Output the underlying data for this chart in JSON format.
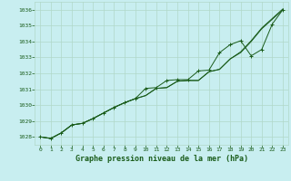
{
  "title": "Graphe pression niveau de la mer (hPa)",
  "bg_color": "#c8eef0",
  "grid_color": "#b0d8c8",
  "line_color": "#1a5c1a",
  "xlim": [
    -0.5,
    23.5
  ],
  "ylim": [
    1027.5,
    1036.5
  ],
  "yticks": [
    1028,
    1029,
    1030,
    1031,
    1032,
    1033,
    1034,
    1035,
    1036
  ],
  "xticks": [
    0,
    1,
    2,
    3,
    4,
    5,
    6,
    7,
    8,
    9,
    10,
    11,
    12,
    13,
    14,
    15,
    16,
    17,
    18,
    19,
    20,
    21,
    22,
    23
  ],
  "series1": [
    [
      0,
      1028.0
    ],
    [
      1,
      1027.9
    ],
    [
      2,
      1028.25
    ],
    [
      3,
      1028.75
    ],
    [
      4,
      1028.85
    ],
    [
      5,
      1029.15
    ],
    [
      6,
      1029.5
    ],
    [
      7,
      1029.85
    ],
    [
      8,
      1030.15
    ],
    [
      9,
      1030.4
    ],
    [
      10,
      1030.6
    ],
    [
      11,
      1031.05
    ],
    [
      12,
      1031.1
    ],
    [
      13,
      1031.5
    ],
    [
      14,
      1031.55
    ],
    [
      15,
      1031.55
    ],
    [
      16,
      1032.1
    ],
    [
      17,
      1032.25
    ],
    [
      18,
      1032.9
    ],
    [
      19,
      1033.3
    ],
    [
      20,
      1034.0
    ],
    [
      21,
      1034.8
    ],
    [
      22,
      1035.4
    ],
    [
      23,
      1036.0
    ]
  ],
  "series2": [
    [
      0,
      1028.0
    ],
    [
      1,
      1027.9
    ],
    [
      2,
      1028.25
    ],
    [
      3,
      1028.75
    ],
    [
      4,
      1028.85
    ],
    [
      5,
      1029.15
    ],
    [
      6,
      1029.5
    ],
    [
      7,
      1029.85
    ],
    [
      8,
      1030.15
    ],
    [
      9,
      1030.4
    ],
    [
      10,
      1031.05
    ],
    [
      11,
      1031.1
    ],
    [
      12,
      1031.55
    ],
    [
      13,
      1031.6
    ],
    [
      14,
      1031.6
    ],
    [
      15,
      1032.15
    ],
    [
      16,
      1032.2
    ],
    [
      17,
      1033.3
    ],
    [
      18,
      1033.8
    ],
    [
      19,
      1034.05
    ],
    [
      20,
      1033.1
    ],
    [
      21,
      1033.5
    ],
    [
      22,
      1035.1
    ],
    [
      23,
      1036.0
    ]
  ],
  "series3": [
    [
      0,
      1028.0
    ],
    [
      1,
      1027.9
    ],
    [
      2,
      1028.25
    ],
    [
      3,
      1028.75
    ],
    [
      4,
      1028.85
    ],
    [
      5,
      1029.15
    ],
    [
      6,
      1029.5
    ],
    [
      7,
      1029.85
    ],
    [
      8,
      1030.15
    ],
    [
      9,
      1030.4
    ],
    [
      10,
      1030.6
    ],
    [
      11,
      1031.05
    ],
    [
      12,
      1031.1
    ],
    [
      13,
      1031.5
    ],
    [
      14,
      1031.55
    ],
    [
      15,
      1031.55
    ],
    [
      16,
      1032.1
    ],
    [
      17,
      1032.25
    ],
    [
      18,
      1032.9
    ],
    [
      19,
      1033.35
    ],
    [
      20,
      1034.05
    ],
    [
      21,
      1034.85
    ],
    [
      22,
      1035.45
    ],
    [
      23,
      1036.05
    ]
  ]
}
